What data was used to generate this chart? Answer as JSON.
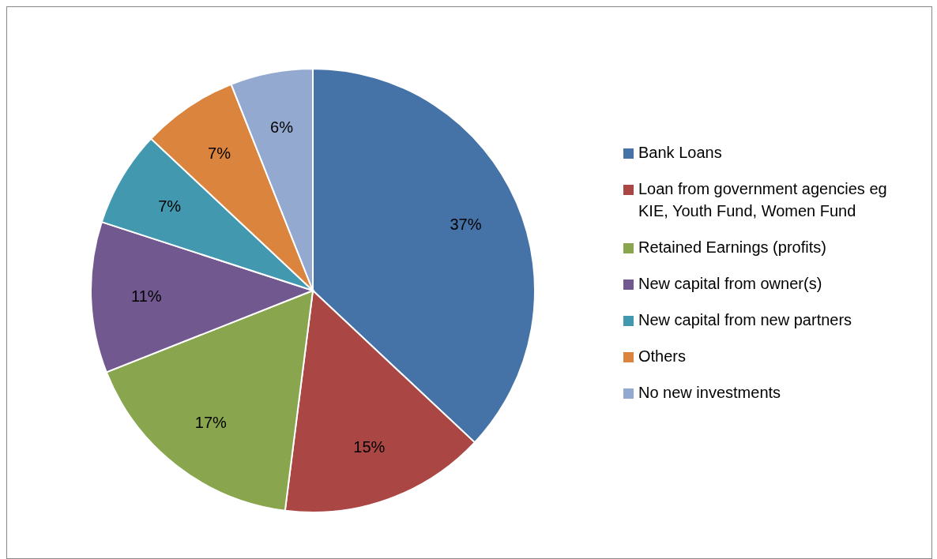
{
  "chart_data": {
    "type": "pie",
    "categories": [
      "Bank Loans",
      "Loan from government agencies eg KIE, Youth Fund, Women Fund",
      "Retained Earnings (profits)",
      "New capital from owner(s)",
      "New capital from new partners",
      "Others",
      "No new investments"
    ],
    "values": [
      37,
      15,
      17,
      11,
      7,
      7,
      6
    ],
    "colors": [
      "#4572a7",
      "#aa4643",
      "#89a54e",
      "#71588f",
      "#4198af",
      "#db843d",
      "#93a9cf"
    ],
    "value_labels": [
      "37%",
      "15%",
      "17%",
      "11%",
      "7%",
      "7%",
      "6%"
    ],
    "legend": "right"
  }
}
